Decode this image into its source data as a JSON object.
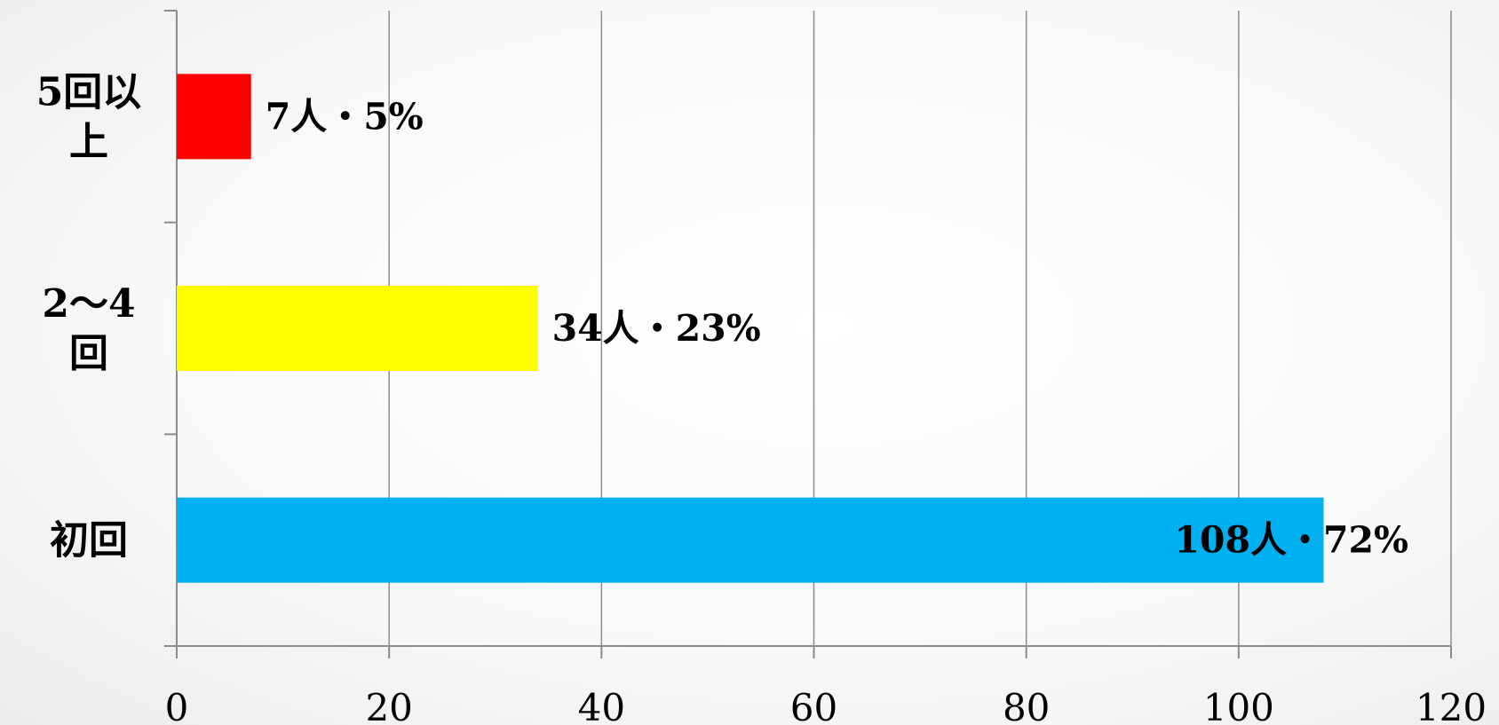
{
  "chart_data": {
    "type": "bar",
    "orientation": "horizontal",
    "title": "",
    "xlabel": "",
    "ylabel": "",
    "xlim": [
      0,
      120
    ],
    "x_ticks": [
      0,
      20,
      40,
      60,
      80,
      100,
      120
    ],
    "grid": "vertical",
    "legend": "none",
    "categories": [
      {
        "lines": [
          "5回以",
          "上"
        ]
      },
      {
        "lines": [
          "2～4",
          "回"
        ]
      },
      {
        "lines": [
          "初回"
        ]
      }
    ],
    "values": [
      7,
      34,
      108
    ],
    "data_labels": [
      "7人・5%",
      "34人・23%",
      "108人・72%"
    ],
    "colors": [
      "#ff0000",
      "#ffff00",
      "#00b0f0"
    ],
    "gridline_color": "#8c8c8c",
    "axis_color": "#8c8c8c"
  }
}
